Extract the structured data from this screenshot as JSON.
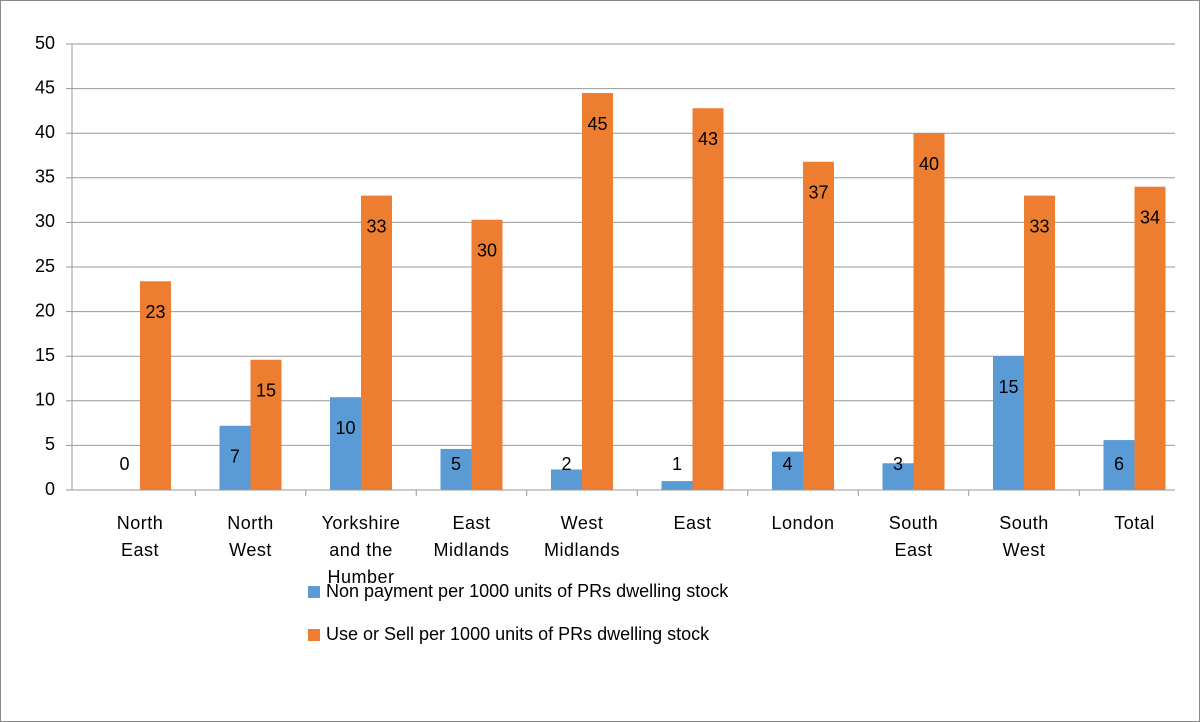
{
  "chart_data": {
    "type": "bar",
    "categories": [
      "North\nEast",
      "North\nWest",
      "Yorkshire\nand the\nHumber",
      "East\nMidlands",
      "West\nMidlands",
      "East",
      "London",
      "South\nEast",
      "South\nWest",
      "Total"
    ],
    "series": [
      {
        "name": "Non payment per 1000 units of PRs dwelling stock",
        "color": "#5b9bd5",
        "values": [
          0,
          7.2,
          10.4,
          4.6,
          2.3,
          1.0,
          4.3,
          3.0,
          15.0,
          5.6
        ],
        "value_labels": [
          "0",
          "7",
          "10",
          "5",
          "2",
          "1",
          "4",
          "3",
          "15",
          "6"
        ]
      },
      {
        "name": "Use or Sell per 1000 units of PRs dwelling stock",
        "color": "#ed7d31",
        "values": [
          23.4,
          14.6,
          33.0,
          30.3,
          44.5,
          42.8,
          36.8,
          40.0,
          33.0,
          34.0
        ],
        "value_labels": [
          "23",
          "15",
          "33",
          "30",
          "45",
          "43",
          "37",
          "40",
          "33",
          "34"
        ]
      }
    ],
    "ylim": [
      0,
      50
    ],
    "yticks": [
      0,
      5,
      10,
      15,
      20,
      25,
      30,
      35,
      40,
      45,
      50
    ],
    "grid": true,
    "legend": "bottom"
  }
}
